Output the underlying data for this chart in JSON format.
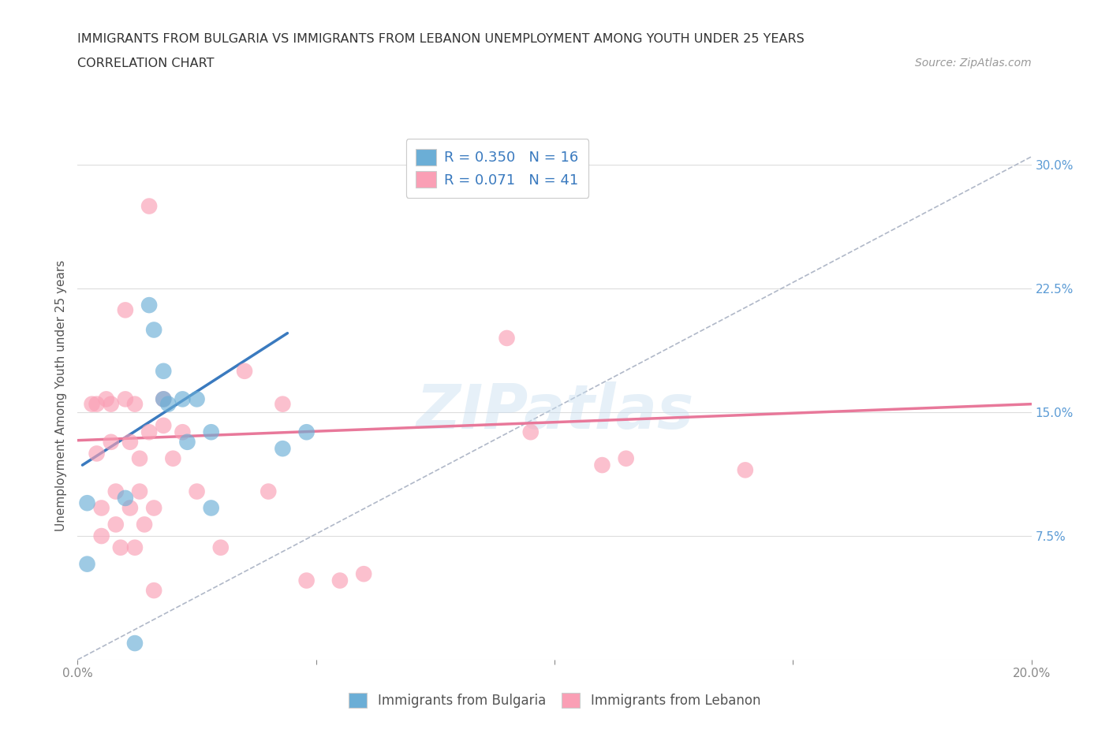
{
  "title_line1": "IMMIGRANTS FROM BULGARIA VS IMMIGRANTS FROM LEBANON UNEMPLOYMENT AMONG YOUTH UNDER 25 YEARS",
  "title_line2": "CORRELATION CHART",
  "source_text": "Source: ZipAtlas.com",
  "ylabel": "Unemployment Among Youth under 25 years",
  "xlim": [
    0.0,
    0.2
  ],
  "ylim": [
    0.0,
    0.32
  ],
  "yticks": [
    0.0,
    0.075,
    0.15,
    0.225,
    0.3
  ],
  "ytick_labels": [
    "",
    "7.5%",
    "15.0%",
    "22.5%",
    "30.0%"
  ],
  "xticks": [
    0.0,
    0.05,
    0.1,
    0.15,
    0.2
  ],
  "xtick_labels": [
    "0.0%",
    "",
    "",
    "",
    "20.0%"
  ],
  "watermark": "ZIPatlas",
  "bulgaria_color": "#6baed6",
  "lebanon_color": "#fa9fb5",
  "bulgaria_line_color": "#3a7abf",
  "lebanon_line_color": "#e8789a",
  "diag_line_color": "#b0b8c8",
  "bulgaria_R": 0.35,
  "bulgaria_N": 16,
  "lebanon_R": 0.071,
  "lebanon_N": 41,
  "legend_label_1": "Immigrants from Bulgaria",
  "legend_label_2": "Immigrants from Lebanon",
  "bulgaria_points_x": [
    0.002,
    0.01,
    0.012,
    0.015,
    0.016,
    0.018,
    0.018,
    0.019,
    0.022,
    0.023,
    0.025,
    0.028,
    0.028,
    0.043,
    0.048,
    0.002
  ],
  "bulgaria_points_y": [
    0.095,
    0.098,
    0.01,
    0.215,
    0.2,
    0.175,
    0.158,
    0.155,
    0.158,
    0.132,
    0.158,
    0.092,
    0.138,
    0.128,
    0.138,
    0.058
  ],
  "lebanon_points_x": [
    0.003,
    0.004,
    0.004,
    0.005,
    0.005,
    0.006,
    0.007,
    0.007,
    0.008,
    0.008,
    0.009,
    0.01,
    0.01,
    0.011,
    0.011,
    0.012,
    0.012,
    0.013,
    0.013,
    0.014,
    0.015,
    0.015,
    0.016,
    0.016,
    0.018,
    0.018,
    0.02,
    0.022,
    0.025,
    0.03,
    0.035,
    0.04,
    0.043,
    0.048,
    0.055,
    0.06,
    0.09,
    0.095,
    0.11,
    0.115,
    0.14
  ],
  "lebanon_points_y": [
    0.155,
    0.155,
    0.125,
    0.092,
    0.075,
    0.158,
    0.155,
    0.132,
    0.102,
    0.082,
    0.068,
    0.212,
    0.158,
    0.132,
    0.092,
    0.068,
    0.155,
    0.122,
    0.102,
    0.082,
    0.275,
    0.138,
    0.092,
    0.042,
    0.158,
    0.142,
    0.122,
    0.138,
    0.102,
    0.068,
    0.175,
    0.102,
    0.155,
    0.048,
    0.048,
    0.052,
    0.195,
    0.138,
    0.118,
    0.122,
    0.115
  ],
  "bulgaria_trendline_x": [
    0.001,
    0.044
  ],
  "bulgaria_trendline_y": [
    0.118,
    0.198
  ],
  "lebanon_trendline_x": [
    0.0,
    0.2
  ],
  "lebanon_trendline_y": [
    0.133,
    0.155
  ],
  "diag_line_x": [
    0.0,
    0.2
  ],
  "diag_line_y": [
    0.0,
    0.305
  ],
  "background_color": "#ffffff",
  "grid_color": "#dddddd",
  "right_tick_color": "#5b9bd5",
  "tick_color": "#888888",
  "legend_text_color": "#3a7abf"
}
